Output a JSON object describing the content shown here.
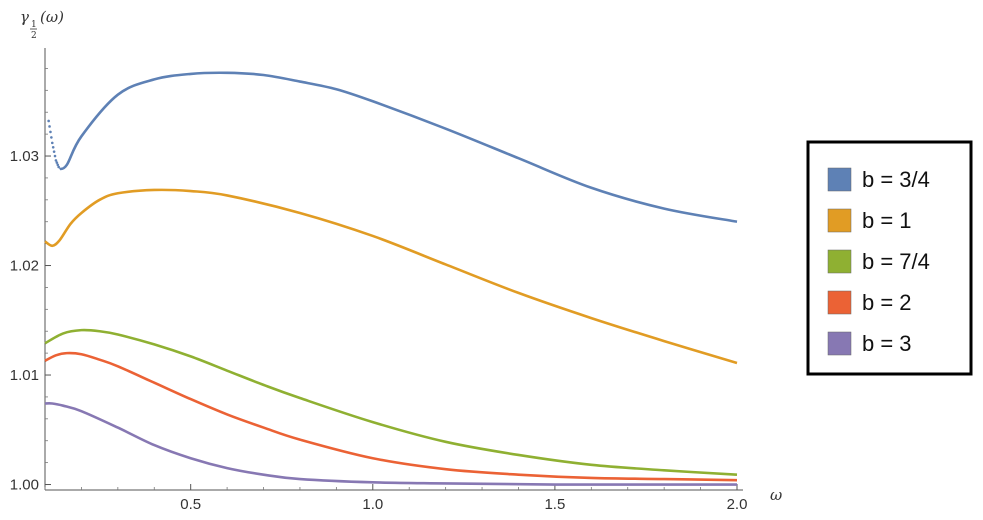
{
  "chart_data": {
    "type": "line",
    "ylabel": {
      "main": "γ",
      "sub_num": "1",
      "sub_den": "2",
      "arg": "(ω)"
    },
    "xlabel": "ω",
    "xlim": [
      0.1,
      2.0
    ],
    "ylim": [
      0.9995,
      1.0395
    ],
    "x_ticks": [
      0.5,
      1.0,
      1.5,
      2.0
    ],
    "x_tick_labels": [
      "0.5",
      "1.0",
      "1.5",
      "2.0"
    ],
    "y_ticks": [
      1.0,
      1.01,
      1.02,
      1.03
    ],
    "y_tick_labels": [
      "1.00",
      "1.01",
      "1.02",
      "1.03"
    ],
    "grid": false,
    "legend_position": "right",
    "series": [
      {
        "name": "b = 3/4",
        "color": "#5E81B5",
        "style": "dotted-start",
        "x": [
          0.11,
          0.12,
          0.13,
          0.14,
          0.16,
          0.2,
          0.3,
          0.4,
          0.5,
          0.6,
          0.7,
          0.8,
          0.9,
          1.0,
          1.2,
          1.4,
          1.6,
          1.8,
          2.0
        ],
        "y": [
          1.0332,
          1.0312,
          1.0296,
          1.0288,
          1.0292,
          1.0318,
          1.0356,
          1.037,
          1.0375,
          1.0376,
          1.0374,
          1.0368,
          1.0361,
          1.035,
          1.0325,
          1.0298,
          1.0271,
          1.0252,
          1.024
        ]
      },
      {
        "name": "b = 1",
        "color": "#E19C24",
        "style": "solid",
        "x": [
          0.1,
          0.12,
          0.14,
          0.17,
          0.2,
          0.25,
          0.3,
          0.4,
          0.5,
          0.6,
          0.8,
          1.0,
          1.2,
          1.4,
          1.6,
          1.8,
          2.0
        ],
        "y": [
          1.0222,
          1.0218,
          1.0223,
          1.0238,
          1.0248,
          1.026,
          1.0266,
          1.0269,
          1.0268,
          1.0264,
          1.0248,
          1.0227,
          1.0201,
          1.0175,
          1.0152,
          1.0131,
          1.0111
        ]
      },
      {
        "name": "b = 7/4",
        "color": "#8FB032",
        "style": "solid",
        "x": [
          0.1,
          0.15,
          0.2,
          0.25,
          0.3,
          0.4,
          0.5,
          0.6,
          0.7,
          0.8,
          1.0,
          1.2,
          1.4,
          1.6,
          1.8,
          2.0
        ],
        "y": [
          1.0129,
          1.0138,
          1.0141,
          1.014,
          1.0137,
          1.0128,
          1.0117,
          1.0104,
          1.0091,
          1.0079,
          1.0057,
          1.0039,
          1.0027,
          1.0018,
          1.0013,
          1.0009
        ]
      },
      {
        "name": "b = 2",
        "color": "#EB6235",
        "style": "solid",
        "x": [
          0.1,
          0.13,
          0.16,
          0.2,
          0.25,
          0.3,
          0.4,
          0.5,
          0.6,
          0.7,
          0.8,
          1.0,
          1.2,
          1.4,
          1.6,
          1.8,
          2.0
        ],
        "y": [
          1.0113,
          1.0118,
          1.012,
          1.0119,
          1.0114,
          1.0108,
          1.0093,
          1.0078,
          1.0064,
          1.0052,
          1.0041,
          1.0024,
          1.0014,
          1.0009,
          1.0006,
          1.0005,
          1.0004
        ]
      },
      {
        "name": "b = 3",
        "color": "#8778B3",
        "style": "solid",
        "x": [
          0.1,
          0.12,
          0.15,
          0.2,
          0.3,
          0.4,
          0.5,
          0.6,
          0.7,
          0.8,
          1.0,
          1.2,
          1.5,
          2.0
        ],
        "y": [
          1.0074,
          1.0074,
          1.0072,
          1.0067,
          1.0052,
          1.0036,
          1.0024,
          1.0015,
          1.0009,
          1.0005,
          1.0002,
          1.0001,
          1.0,
          1.0
        ]
      }
    ]
  }
}
